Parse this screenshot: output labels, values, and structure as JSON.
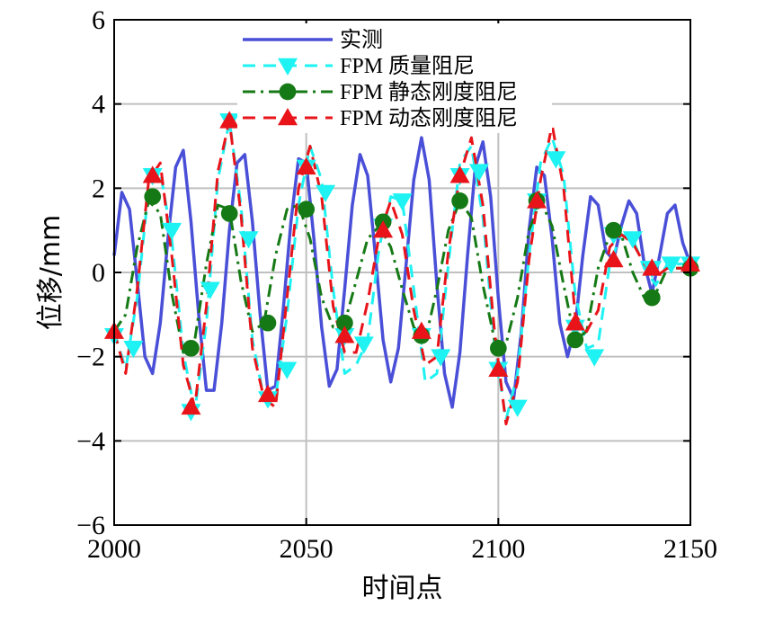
{
  "chart_data": {
    "type": "line",
    "xlabel": "时间点",
    "ylabel": "位移/mm",
    "xlim": [
      2000,
      2150
    ],
    "ylim": [
      -6,
      6
    ],
    "xticks": [
      2000,
      2050,
      2100,
      2150
    ],
    "yticks": [
      -6,
      -4,
      -2,
      0,
      2,
      4,
      6
    ],
    "xtick_labels": [
      "2000",
      "2050",
      "2100",
      "2150"
    ],
    "ytick_labels": [
      "−6",
      "−4",
      "−2",
      "0",
      "2",
      "4",
      "6"
    ],
    "grid": true,
    "legend_position": "top-center",
    "series": [
      {
        "name": "实测",
        "color": "#4a4fd8",
        "style": "solid",
        "marker": "none",
        "x": [
          2000,
          2002,
          2004,
          2006,
          2008,
          2010,
          2012,
          2014,
          2016,
          2018,
          2020,
          2022,
          2024,
          2026,
          2028,
          2030,
          2032,
          2034,
          2036,
          2038,
          2040,
          2042,
          2044,
          2046,
          2048,
          2050,
          2052,
          2054,
          2056,
          2058,
          2060,
          2062,
          2064,
          2066,
          2068,
          2070,
          2072,
          2074,
          2076,
          2078,
          2080,
          2082,
          2084,
          2086,
          2088,
          2090,
          2092,
          2094,
          2096,
          2098,
          2100,
          2102,
          2104,
          2106,
          2108,
          2110,
          2112,
          2114,
          2116,
          2118,
          2120,
          2122,
          2124,
          2126,
          2128,
          2130,
          2132,
          2134,
          2136,
          2138,
          2140,
          2142,
          2144,
          2146,
          2148,
          2150
        ],
        "y": [
          0.4,
          1.9,
          1.5,
          -0.2,
          -2.0,
          -2.4,
          -1.2,
          0.8,
          2.5,
          2.9,
          1.2,
          -1.0,
          -2.8,
          -2.8,
          -1.2,
          1.0,
          2.6,
          2.8,
          1.2,
          -1.0,
          -2.8,
          -2.7,
          -0.9,
          1.2,
          2.7,
          2.6,
          0.8,
          -1.3,
          -2.7,
          -2.3,
          -0.4,
          1.6,
          2.8,
          2.3,
          0.4,
          -1.6,
          -2.6,
          -1.8,
          0.2,
          2.2,
          3.2,
          2.2,
          -0.3,
          -2.4,
          -3.2,
          -1.9,
          0.4,
          2.5,
          3.1,
          1.8,
          -0.6,
          -2.6,
          -3.0,
          -1.4,
          1.0,
          2.5,
          2.3,
          0.8,
          -1.2,
          -2.0,
          -1.3,
          0.4,
          1.8,
          1.6,
          0.5,
          0.3,
          1.1,
          1.7,
          1.4,
          0.2,
          -0.5,
          0.4,
          1.4,
          1.6,
          0.7,
          0.2
        ]
      },
      {
        "name": "FPM 质量阻尼",
        "color": "#1ef2f2",
        "style": "dashed",
        "marker": "triangle-down",
        "x": [
          2000,
          2003,
          2006,
          2009,
          2012,
          2015,
          2018,
          2021,
          2024,
          2027,
          2030,
          2033,
          2036,
          2039,
          2042,
          2045,
          2048,
          2051,
          2054,
          2057,
          2060,
          2063,
          2066,
          2069,
          2072,
          2075,
          2078,
          2081,
          2084,
          2087,
          2090,
          2093,
          2096,
          2099,
          2102,
          2105,
          2108,
          2111,
          2114,
          2117,
          2120,
          2123,
          2126,
          2129,
          2132,
          2135,
          2138,
          2141,
          2144,
          2147,
          2150
        ],
        "y": [
          -1.4,
          -2.3,
          -0.6,
          2.0,
          2.4,
          0.8,
          -1.9,
          -3.3,
          -1.2,
          2.2,
          3.6,
          1.6,
          -1.6,
          -3.0,
          -3.0,
          -1.0,
          1.6,
          3.0,
          2.2,
          -0.4,
          -2.4,
          -2.2,
          -1.6,
          0.6,
          1.8,
          1.7,
          -0.4,
          -2.6,
          -2.4,
          0.2,
          2.6,
          3.0,
          1.3,
          -1.7,
          -3.5,
          -2.4,
          0.4,
          2.6,
          3.2,
          2.3,
          -0.5,
          -1.8,
          -1.7,
          0.2,
          0.9,
          0.8,
          0.1,
          -0.3,
          0.2,
          0.2,
          0.2
        ]
      },
      {
        "name": "FPM 静态刚度阻尼",
        "color": "#157a15",
        "style": "dashdot",
        "marker": "circle",
        "x": [
          2000,
          2003,
          2006,
          2009,
          2012,
          2015,
          2018,
          2021,
          2024,
          2027,
          2030,
          2033,
          2036,
          2039,
          2042,
          2045,
          2048,
          2051,
          2054,
          2057,
          2060,
          2063,
          2066,
          2069,
          2072,
          2075,
          2078,
          2081,
          2084,
          2087,
          2090,
          2093,
          2096,
          2099,
          2102,
          2105,
          2108,
          2111,
          2114,
          2117,
          2120,
          2123,
          2126,
          2129,
          2132,
          2135,
          2138,
          2141,
          2144,
          2147,
          2150
        ],
        "y": [
          -1.4,
          -1.0,
          0.6,
          1.7,
          1.4,
          -0.5,
          -1.9,
          -1.6,
          0.2,
          1.6,
          1.5,
          -0.2,
          -1.4,
          -1.2,
          0.4,
          1.5,
          1.6,
          0.8,
          -0.6,
          -1.3,
          -1.2,
          -0.2,
          0.8,
          1.1,
          0.6,
          -0.4,
          -1.3,
          -1.6,
          -0.4,
          1.0,
          1.7,
          1.3,
          -0.3,
          -1.6,
          -1.7,
          -0.6,
          1.0,
          1.7,
          1.1,
          -0.3,
          -1.6,
          -1.4,
          0.1,
          0.9,
          0.9,
          0.0,
          -0.6,
          -0.5,
          0.1,
          0.1,
          0.1
        ]
      },
      {
        "name": "FPM 动态刚度阻尼",
        "color": "#e8141a",
        "style": "dashed",
        "marker": "triangle-up",
        "x": [
          2000,
          2003,
          2006,
          2009,
          2012,
          2015,
          2018,
          2021,
          2024,
          2027,
          2030,
          2033,
          2036,
          2039,
          2042,
          2045,
          2048,
          2051,
          2054,
          2057,
          2060,
          2063,
          2066,
          2069,
          2072,
          2075,
          2078,
          2081,
          2084,
          2087,
          2090,
          2093,
          2096,
          2099,
          2102,
          2105,
          2108,
          2111,
          2114,
          2117,
          2120,
          2123,
          2126,
          2129,
          2132,
          2135,
          2138,
          2141,
          2144,
          2147,
          2150
        ],
        "y": [
          -1.4,
          -2.4,
          -0.4,
          2.2,
          2.6,
          0.4,
          -2.2,
          -3.2,
          -0.8,
          2.4,
          3.6,
          1.4,
          -1.8,
          -3.0,
          -3.2,
          -0.6,
          2.0,
          3.0,
          1.8,
          -0.8,
          -1.9,
          -1.9,
          -0.7,
          0.9,
          1.7,
          0.9,
          -0.9,
          -2.2,
          -2.0,
          0.5,
          2.3,
          3.2,
          1.6,
          -1.4,
          -3.6,
          -2.6,
          0.3,
          2.2,
          3.5,
          2.0,
          -1.0,
          -1.4,
          -0.9,
          0.6,
          0.9,
          0.7,
          0.2,
          -0.1,
          0.1,
          0.1,
          0.1
        ]
      }
    ],
    "markers": {
      "FPM 质量阻尼": {
        "x": [
          2000,
          2005,
          2010,
          2015,
          2020,
          2025,
          2030,
          2035,
          2040,
          2045,
          2050,
          2055,
          2060,
          2065,
          2070,
          2075,
          2080,
          2085,
          2090,
          2095,
          2100,
          2105,
          2110,
          2115,
          2120,
          2125,
          2130,
          2135,
          2140,
          2145,
          2150
        ],
        "y": [
          -1.5,
          -1.8,
          2.3,
          1.0,
          -3.3,
          -0.4,
          3.6,
          0.8,
          -3.0,
          -2.3,
          2.5,
          1.9,
          -1.5,
          -1.7,
          1.1,
          1.7,
          -1.5,
          -2.0,
          2.3,
          2.4,
          -2.3,
          -3.2,
          1.7,
          2.7,
          -1.3,
          -2.0,
          0.9,
          0.8,
          0.1,
          0.2,
          0.2
        ]
      },
      "FPM 静态刚度阻尼": {
        "x": [
          2010,
          2020,
          2030,
          2040,
          2050,
          2060,
          2070,
          2080,
          2090,
          2100,
          2110,
          2120,
          2130,
          2140,
          2150
        ],
        "y": [
          1.8,
          -1.8,
          1.4,
          -1.2,
          1.5,
          -1.2,
          1.2,
          -1.5,
          1.7,
          -1.8,
          1.7,
          -1.6,
          1.0,
          -0.6,
          0.1
        ]
      },
      "FPM 动态刚度阻尼": {
        "x": [
          2000,
          2010,
          2020,
          2030,
          2040,
          2050,
          2060,
          2070,
          2080,
          2090,
          2100,
          2110,
          2120,
          2130,
          2140,
          2150
        ],
        "y": [
          -1.4,
          2.3,
          -3.2,
          3.6,
          -2.9,
          2.5,
          -1.5,
          1.0,
          -1.4,
          2.3,
          -2.3,
          1.7,
          -1.2,
          0.3,
          0.1,
          0.2
        ]
      }
    }
  }
}
